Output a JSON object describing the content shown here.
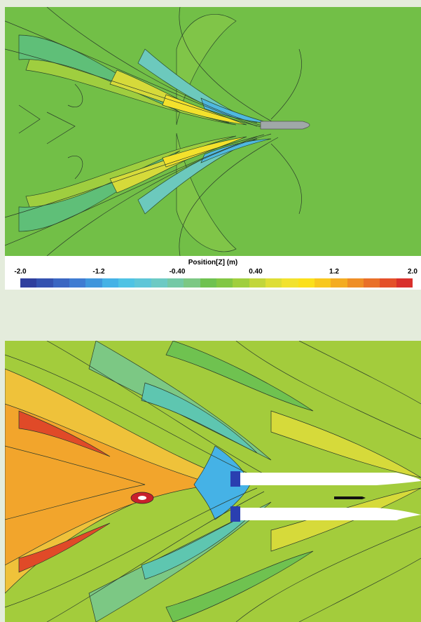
{
  "colorbar": {
    "title": "Position[Z] (m)",
    "ticks": [
      "-2.0",
      "-1.2",
      "-0.40",
      "0.40",
      "1.2",
      "2.0"
    ],
    "range": [
      -2.0,
      2.0
    ],
    "colors": [
      "#2f3f9e",
      "#3452b0",
      "#3a66c2",
      "#3f7cd2",
      "#3f96dc",
      "#45b2e6",
      "#4fc3e4",
      "#5ec6d8",
      "#6ccac4",
      "#74c9a6",
      "#7cc884",
      "#6fc250",
      "#82c744",
      "#a0cf3e",
      "#c2d63a",
      "#dede35",
      "#f2e22e",
      "#fbe01b",
      "#f8c81e",
      "#f4ac22",
      "#ef8e25",
      "#e97028",
      "#e4502a",
      "#d9302c"
    ]
  },
  "panels": {
    "top": {
      "background": "#72bf47"
    },
    "bottom": {
      "background": "#a3cc3c"
    }
  }
}
